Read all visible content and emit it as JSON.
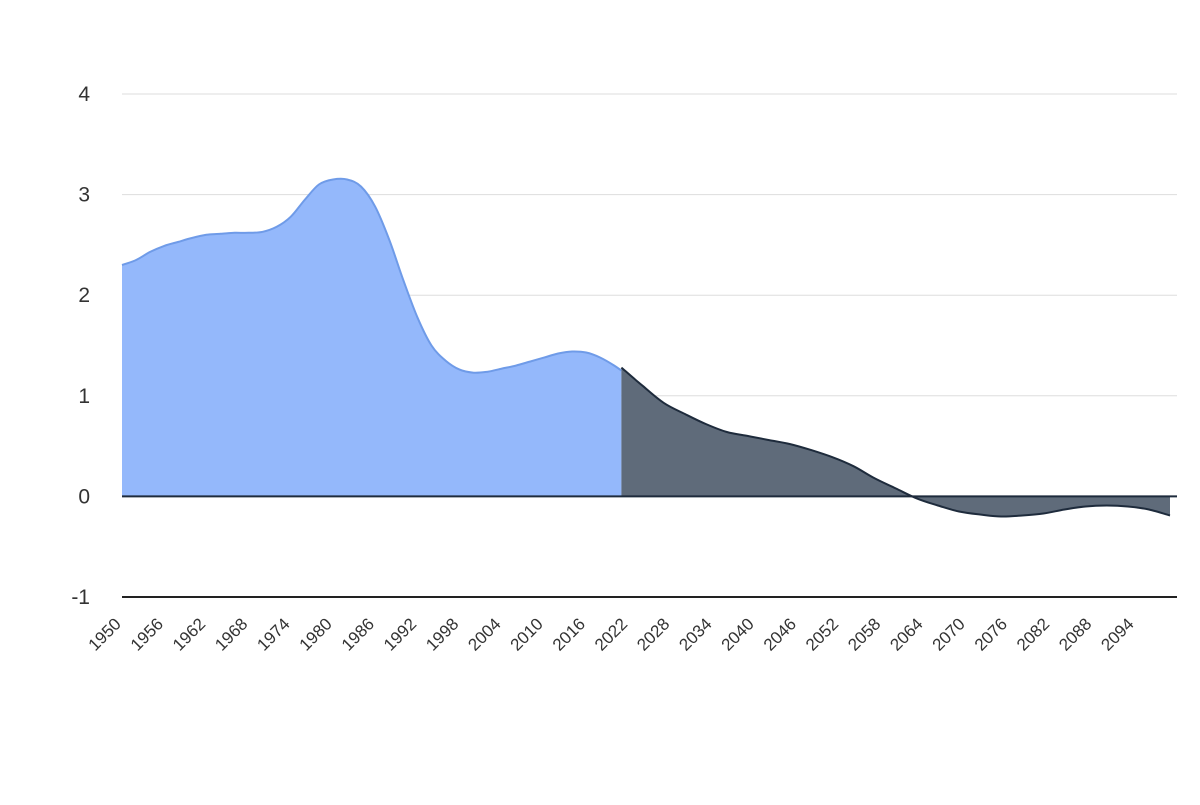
{
  "chart_data": {
    "type": "area",
    "title": "",
    "xlabel": "",
    "ylabel": "",
    "xlim": [
      1950,
      2100
    ],
    "ylim": [
      -1,
      4
    ],
    "grid": true,
    "y_ticks": [
      "4",
      "3",
      "2",
      "1",
      "0",
      "-1"
    ],
    "x_ticks": [
      "1950",
      "1956",
      "1962",
      "1968",
      "1974",
      "1980",
      "1986",
      "1992",
      "1998",
      "2004",
      "2010",
      "2016",
      "2022",
      "2028",
      "2034",
      "2040",
      "2046",
      "2052",
      "2058",
      "2064",
      "2070",
      "2076",
      "2082",
      "2088",
      "2094"
    ],
    "colors": {
      "historical": "#94b8fb",
      "historical_line": "#6f9be8",
      "projection": "#5f6b7a",
      "projection_line": "#1e2b3c",
      "grid": "#dddddd",
      "axis": "#222222"
    },
    "series": [
      {
        "x": [
          1950,
          1952,
          1954,
          1956,
          1958,
          1960,
          1962,
          1964,
          1966,
          1968,
          1970,
          1972,
          1974,
          1976,
          1978,
          1980,
          1982,
          1984,
          1986,
          1988,
          1990,
          1992,
          1994,
          1996,
          1998,
          2000,
          2002,
          2004,
          2006,
          2008,
          2010,
          2012,
          2014,
          2016,
          2018,
          2020,
          2021
        ],
        "values": [
          2.3,
          2.35,
          2.43,
          2.49,
          2.53,
          2.57,
          2.6,
          2.61,
          2.62,
          2.62,
          2.63,
          2.68,
          2.78,
          2.95,
          3.1,
          3.15,
          3.15,
          3.08,
          2.88,
          2.55,
          2.15,
          1.78,
          1.5,
          1.35,
          1.26,
          1.23,
          1.24,
          1.27,
          1.3,
          1.34,
          1.38,
          1.42,
          1.44,
          1.43,
          1.38,
          1.3,
          1.25
        ]
      },
      {
        "x": [
          2021,
          2024,
          2027,
          2030,
          2033,
          2036,
          2039,
          2042,
          2045,
          2048,
          2051,
          2054,
          2057,
          2060,
          2063,
          2066,
          2069,
          2072,
          2075,
          2078,
          2081,
          2084,
          2087,
          2090,
          2093,
          2096,
          2099
        ],
        "values": [
          1.28,
          1.1,
          0.93,
          0.82,
          0.72,
          0.64,
          0.6,
          0.56,
          0.52,
          0.46,
          0.39,
          0.3,
          0.18,
          0.08,
          -0.02,
          -0.09,
          -0.15,
          -0.18,
          -0.2,
          -0.19,
          -0.17,
          -0.13,
          -0.1,
          -0.09,
          -0.1,
          -0.13,
          -0.19
        ]
      }
    ]
  }
}
